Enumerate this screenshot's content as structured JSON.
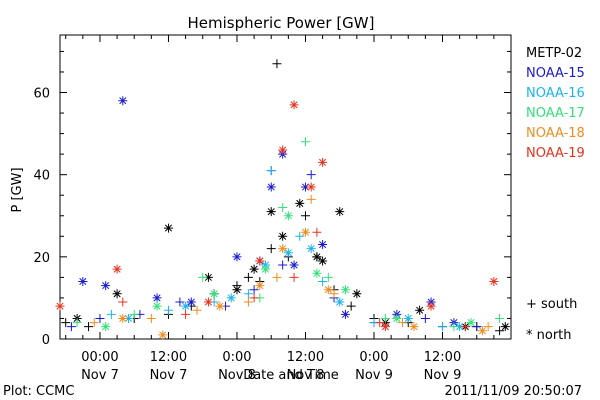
{
  "chart_data": {
    "type": "scatter",
    "title": "Hemispheric Power [GW]",
    "ylabel": "P [GW]",
    "xlabel": "Date and Time",
    "ylim": [
      0,
      74
    ],
    "xlim": [
      "2011-11-06T17:00",
      "2011-11-10T00:00"
    ],
    "y_ticks": [
      0,
      20,
      40,
      60
    ],
    "x_ticks": [
      {
        "time": "00:00",
        "date": "Nov 7"
      },
      {
        "time": "12:00",
        "date": "Nov 7"
      },
      {
        "time": "0:00",
        "date": "Nov 8"
      },
      {
        "time": "12:00",
        "date": "Nov 8"
      },
      {
        "time": "0:00",
        "date": "Nov 9"
      },
      {
        "time": "12:00",
        "date": "Nov 9"
      }
    ],
    "x_tick_dates": [
      "2011-11-07T00:00",
      "2011-11-07T12:00",
      "2011-11-08T00:00",
      "2011-11-08T12:00",
      "2011-11-09T00:00",
      "2011-11-09T12:00"
    ],
    "legend_position": "right",
    "marker_legend": [
      {
        "symbol": "+",
        "label": "south"
      },
      {
        "symbol": "*",
        "label": "north"
      }
    ],
    "series": [
      {
        "name": "METP-02",
        "color": "#000000",
        "south": [
          [
            "2011-11-06T18:00",
            4
          ],
          [
            "2011-11-06T22:00",
            3
          ],
          [
            "2011-11-07T06:00",
            5
          ],
          [
            "2011-11-07T12:00",
            6
          ],
          [
            "2011-11-07T16:00",
            8
          ],
          [
            "2011-11-07T20:00",
            11
          ],
          [
            "2011-11-08T00:00",
            13
          ],
          [
            "2011-11-08T02:00",
            15
          ],
          [
            "2011-11-08T04:00",
            14
          ],
          [
            "2011-11-08T06:00",
            22
          ],
          [
            "2011-11-08T07:00",
            67
          ],
          [
            "2011-11-08T09:00",
            20
          ],
          [
            "2011-11-08T12:00",
            30
          ],
          [
            "2011-11-08T14:00",
            20
          ],
          [
            "2011-11-08T17:00",
            12
          ],
          [
            "2011-11-08T20:00",
            8
          ],
          [
            "2011-11-09T00:00",
            5
          ],
          [
            "2011-11-09T06:00",
            4
          ],
          [
            "2011-11-09T12:00",
            3
          ],
          [
            "2011-11-09T18:00",
            3
          ],
          [
            "2011-11-09T22:00",
            2
          ]
        ],
        "north": [
          [
            "2011-11-06T20:00",
            5
          ],
          [
            "2011-11-07T03:00",
            11
          ],
          [
            "2011-11-07T12:00",
            27
          ],
          [
            "2011-11-07T19:00",
            15
          ],
          [
            "2011-11-08T00:00",
            12
          ],
          [
            "2011-11-08T03:00",
            17
          ],
          [
            "2011-11-08T06:00",
            31
          ],
          [
            "2011-11-08T08:00",
            25
          ],
          [
            "2011-11-08T11:00",
            33
          ],
          [
            "2011-11-08T14:00",
            20
          ],
          [
            "2011-11-08T15:00",
            19
          ],
          [
            "2011-11-08T18:00",
            31
          ],
          [
            "2011-11-08T21:00",
            11
          ],
          [
            "2011-11-09T02:00",
            4
          ],
          [
            "2011-11-09T08:00",
            7
          ],
          [
            "2011-11-09T16:00",
            3
          ],
          [
            "2011-11-09T23:00",
            3
          ]
        ]
      },
      {
        "name": "NOAA-15",
        "color": "#1a1ad0",
        "south": [
          [
            "2011-11-06T19:00",
            3
          ],
          [
            "2011-11-07T00:00",
            5
          ],
          [
            "2011-11-07T07:00",
            6
          ],
          [
            "2011-11-07T14:00",
            9
          ],
          [
            "2011-11-07T22:00",
            8
          ],
          [
            "2011-11-08T03:00",
            12
          ],
          [
            "2011-11-08T06:00",
            41
          ],
          [
            "2011-11-08T08:00",
            18
          ],
          [
            "2011-11-08T13:00",
            40
          ],
          [
            "2011-11-08T17:00",
            10
          ],
          [
            "2011-11-09T00:00",
            4
          ],
          [
            "2011-11-09T09:00",
            5
          ],
          [
            "2011-11-09T18:00",
            3
          ]
        ],
        "north": [
          [
            "2011-11-06T21:00",
            14
          ],
          [
            "2011-11-07T01:00",
            13
          ],
          [
            "2011-11-07T04:00",
            58
          ],
          [
            "2011-11-07T10:00",
            10
          ],
          [
            "2011-11-07T16:00",
            9
          ],
          [
            "2011-11-08T00:00",
            20
          ],
          [
            "2011-11-08T04:00",
            19
          ],
          [
            "2011-11-08T06:00",
            37
          ],
          [
            "2011-11-08T08:00",
            45
          ],
          [
            "2011-11-08T10:00",
            18
          ],
          [
            "2011-11-08T12:00",
            37
          ],
          [
            "2011-11-08T15:00",
            23
          ],
          [
            "2011-11-08T19:00",
            6
          ],
          [
            "2011-11-09T04:00",
            6
          ],
          [
            "2011-11-09T10:00",
            9
          ],
          [
            "2011-11-09T14:00",
            4
          ]
        ]
      },
      {
        "name": "NOAA-16",
        "color": "#1ab4f0",
        "south": [
          [
            "2011-11-07T02:00",
            6
          ],
          [
            "2011-11-07T12:00",
            7
          ],
          [
            "2011-11-07T20:00",
            9
          ],
          [
            "2011-11-08T02:00",
            11
          ],
          [
            "2011-11-08T06:00",
            41
          ],
          [
            "2011-11-08T11:00",
            25
          ],
          [
            "2011-11-08T15:00",
            14
          ],
          [
            "2011-11-09T00:00",
            4
          ],
          [
            "2011-11-09T12:00",
            3
          ]
        ],
        "north": [
          [
            "2011-11-07T05:00",
            5
          ],
          [
            "2011-11-07T15:00",
            8
          ],
          [
            "2011-11-07T23:00",
            10
          ],
          [
            "2011-11-08T05:00",
            18
          ],
          [
            "2011-11-08T09:00",
            21
          ],
          [
            "2011-11-08T13:00",
            22
          ],
          [
            "2011-11-08T18:00",
            9
          ],
          [
            "2011-11-09T06:00",
            5
          ],
          [
            "2011-11-09T15:00",
            3
          ]
        ]
      },
      {
        "name": "NOAA-17",
        "color": "#33e07a",
        "south": [
          [
            "2011-11-06T20:00",
            4
          ],
          [
            "2011-11-07T06:00",
            6
          ],
          [
            "2011-11-07T18:00",
            15
          ],
          [
            "2011-11-08T04:00",
            10
          ],
          [
            "2011-11-08T08:00",
            32
          ],
          [
            "2011-11-08T12:00",
            48
          ],
          [
            "2011-11-08T16:00",
            15
          ],
          [
            "2011-11-09T02:00",
            5
          ],
          [
            "2011-11-09T14:00",
            3
          ],
          [
            "2011-11-09T22:00",
            5
          ]
        ],
        "north": [
          [
            "2011-11-07T01:00",
            3
          ],
          [
            "2011-11-07T10:00",
            8
          ],
          [
            "2011-11-07T20:00",
            11
          ],
          [
            "2011-11-08T05:00",
            17
          ],
          [
            "2011-11-08T09:00",
            30
          ],
          [
            "2011-11-08T14:00",
            16
          ],
          [
            "2011-11-08T19:00",
            12
          ],
          [
            "2011-11-09T04:00",
            5
          ],
          [
            "2011-11-09T17:00",
            4
          ]
        ]
      },
      {
        "name": "NOAA-18",
        "color": "#f08c1e",
        "south": [
          [
            "2011-11-06T23:00",
            4
          ],
          [
            "2011-11-07T09:00",
            5
          ],
          [
            "2011-11-07T17:00",
            7
          ],
          [
            "2011-11-08T02:00",
            9
          ],
          [
            "2011-11-08T07:00",
            15
          ],
          [
            "2011-11-08T13:00",
            34
          ],
          [
            "2011-11-08T17:00",
            11
          ],
          [
            "2011-11-09T05:00",
            4
          ],
          [
            "2011-11-09T20:00",
            3
          ]
        ],
        "north": [
          [
            "2011-11-07T04:00",
            5
          ],
          [
            "2011-11-07T11:00",
            1
          ],
          [
            "2011-11-07T21:00",
            8
          ],
          [
            "2011-11-08T04:00",
            13
          ],
          [
            "2011-11-08T08:00",
            22
          ],
          [
            "2011-11-08T12:00",
            26
          ],
          [
            "2011-11-08T16:00",
            12
          ],
          [
            "2011-11-09T07:00",
            3
          ],
          [
            "2011-11-09T19:00",
            2
          ]
        ]
      },
      {
        "name": "NOAA-19",
        "color": "#e8321e",
        "south": [
          [
            "2011-11-07T04:00",
            9
          ],
          [
            "2011-11-07T15:00",
            6
          ],
          [
            "2011-11-08T03:00",
            10
          ],
          [
            "2011-11-08T10:00",
            15
          ],
          [
            "2011-11-08T14:00",
            26
          ],
          [
            "2011-11-09T01:00",
            4
          ],
          [
            "2011-11-09T16:00",
            3
          ]
        ],
        "north": [
          [
            "2011-11-06T17:00",
            8
          ],
          [
            "2011-11-07T03:00",
            17
          ],
          [
            "2011-11-07T19:00",
            9
          ],
          [
            "2011-11-08T04:00",
            19
          ],
          [
            "2011-11-08T08:00",
            46
          ],
          [
            "2011-11-08T10:00",
            57
          ],
          [
            "2011-11-08T13:00",
            37
          ],
          [
            "2011-11-08T15:00",
            43
          ],
          [
            "2011-11-09T02:00",
            3
          ],
          [
            "2011-11-09T10:00",
            8
          ],
          [
            "2011-11-09T21:00",
            14
          ]
        ]
      }
    ]
  },
  "footer": {
    "left": "Plot: CCMC",
    "right": "2011/11/09 20:50:07"
  }
}
